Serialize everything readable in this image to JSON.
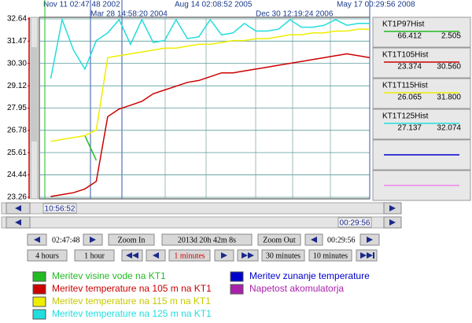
{
  "time_labels": [
    "Nov 11 02:47:48 2002",
    "Aug 14 02:08:52 2005",
    "May 17 00:29:56 2008",
    "Mar 28 14:58:20 2004",
    "Dec 30 12:19:24 2006"
  ],
  "chart_data": {
    "type": "line",
    "ylim": [
      23.26,
      32.64
    ],
    "yticks": [
      32.64,
      31.47,
      {
        "value": 30.3,
        "label": "30.30"
      },
      29.12,
      27.95,
      26.78,
      25.61,
      24.44,
      23.26
    ],
    "grid": true,
    "series": [
      {
        "name": "KT1P97Hist",
        "color": "#22bb22",
        "range_labels": [
          "66.412",
          "2.505"
        ],
        "values": [
          null,
          null,
          null,
          null,
          26.5,
          25.2,
          null,
          null,
          null,
          null,
          null,
          null,
          null,
          null,
          null,
          null,
          null,
          null,
          null,
          null,
          null,
          null,
          null,
          null,
          null,
          null,
          null,
          null,
          null,
          null
        ]
      },
      {
        "name": "KT1T105Hist",
        "color": "#cc0000",
        "range_labels": [
          "23.374",
          "30.560"
        ],
        "values": [
          null,
          23.3,
          23.4,
          23.5,
          23.7,
          24.1,
          27.5,
          27.9,
          28.1,
          28.3,
          28.7,
          28.9,
          29.1,
          29.3,
          29.4,
          29.6,
          29.8,
          29.8,
          29.9,
          30.0,
          30.1,
          30.2,
          30.3,
          30.4,
          30.5,
          30.6,
          30.7,
          30.8,
          30.7,
          30.6
        ]
      },
      {
        "name": "KT1T115Hist",
        "color": "#eeee00",
        "range_labels": [
          "26.065",
          "31.800"
        ],
        "values": [
          null,
          26.2,
          26.3,
          26.4,
          26.5,
          26.8,
          30.6,
          30.7,
          30.8,
          30.9,
          31.0,
          31.1,
          31.1,
          31.2,
          31.3,
          31.3,
          31.4,
          31.5,
          31.5,
          31.6,
          31.6,
          31.7,
          31.8,
          31.8,
          31.9,
          31.9,
          32.0,
          32.0,
          32.1,
          32.1
        ]
      },
      {
        "name": "KT1T125Hist",
        "color": "#22dddd",
        "range_labels": [
          "27.137",
          "32.074"
        ],
        "values": [
          null,
          29.5,
          32.6,
          31.0,
          30.0,
          31.5,
          31.9,
          32.6,
          31.3,
          32.6,
          31.4,
          31.5,
          32.6,
          31.6,
          31.7,
          32.6,
          31.8,
          31.9,
          32.4,
          32.0,
          32.0,
          32.1,
          32.6,
          32.2,
          32.2,
          32.3,
          32.6,
          32.3,
          32.4,
          32.4
        ]
      }
    ]
  },
  "extra_panels": [
    {
      "color": "#0000cc"
    },
    {
      "color": "#ee88ee"
    }
  ],
  "cursor_labels": [
    "10:56:52",
    "00:29:56"
  ],
  "controls": {
    "row1": [
      "02:47:48",
      "Zoom In",
      "2013d 20h 42m 8s",
      "Zoom Out",
      "00:29:56"
    ],
    "row2": [
      "4 hours",
      "1 hour",
      "1 minutes",
      "30 minutes",
      "10 minutes"
    ]
  },
  "legend": [
    {
      "label": "Meritev visine vode na KT1",
      "color": "#22bb22"
    },
    {
      "label": "Meritev temperature na 105 m na KT1",
      "color": "#cc0000"
    },
    {
      "label": "Meritev temperature na 115 m na KT1",
      "color": "#eeee00"
    },
    {
      "label": "Meritev temperature na 125 m na KT1",
      "color": "#22dddd"
    },
    {
      "label": "Meritev zunanje temperature",
      "color": "#0000cc"
    },
    {
      "label": "Napetost akomulatorja",
      "color": "#aa22aa"
    }
  ]
}
